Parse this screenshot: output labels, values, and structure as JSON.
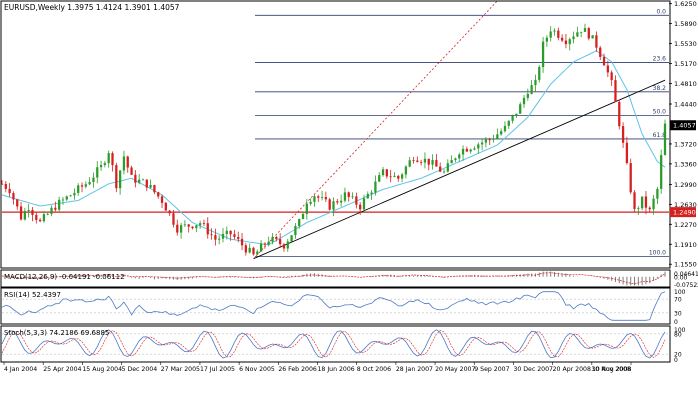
{
  "chart_data": {
    "type": "candlestick",
    "main": {
      "title": "EURUSD,Weekly  1.3975 1.4124 1.3901 1.4057",
      "y_axis_ticks": [
        "1.6250",
        "1.5890",
        "1.5530",
        "1.5170",
        "1.4810",
        "1.4440",
        "1.4057",
        "1.3720",
        "1.3360",
        "1.2990",
        "1.2630",
        "1.2490",
        "1.2270",
        "1.1910",
        "1.1550"
      ],
      "y_axis_values": [
        1.625,
        1.589,
        1.553,
        1.517,
        1.481,
        1.444,
        1.4057,
        1.372,
        1.336,
        1.299,
        1.263,
        1.249,
        1.227,
        1.191,
        1.155
      ],
      "ylim": [
        1.15,
        1.628
      ],
      "current_price": "1.4057",
      "current_value": 1.4057,
      "support_level_label": "1.2490",
      "support_value": 1.249,
      "fib_levels": [
        {
          "label": "0.0",
          "value": 1.604
        },
        {
          "label": "23.6",
          "value": 1.519
        },
        {
          "label": "38.2",
          "value": 1.466
        },
        {
          "label": "50.0",
          "value": 1.423
        },
        {
          "label": "61.8",
          "value": 1.381
        },
        {
          "label": "100.0",
          "value": 1.169
        }
      ],
      "price_path": [
        [
          0,
          1.3
        ],
        [
          2,
          1.29
        ],
        [
          5,
          1.24
        ],
        [
          7,
          1.26
        ],
        [
          10,
          1.23
        ],
        [
          14,
          1.26
        ],
        [
          18,
          1.28
        ],
        [
          22,
          1.3
        ],
        [
          26,
          1.33
        ],
        [
          28,
          1.36
        ],
        [
          30,
          1.3
        ],
        [
          32,
          1.35
        ],
        [
          34,
          1.31
        ],
        [
          38,
          1.3
        ],
        [
          42,
          1.27
        ],
        [
          46,
          1.22
        ],
        [
          52,
          1.23
        ],
        [
          56,
          1.2
        ],
        [
          60,
          1.21
        ],
        [
          66,
          1.17
        ],
        [
          70,
          1.2
        ],
        [
          74,
          1.19
        ],
        [
          78,
          1.23
        ],
        [
          80,
          1.27
        ],
        [
          82,
          1.28
        ],
        [
          86,
          1.26
        ],
        [
          90,
          1.28
        ],
        [
          94,
          1.26
        ],
        [
          98,
          1.3
        ],
        [
          100,
          1.32
        ],
        [
          104,
          1.31
        ],
        [
          108,
          1.35
        ],
        [
          112,
          1.34
        ],
        [
          116,
          1.32
        ],
        [
          120,
          1.36
        ],
        [
          124,
          1.37
        ],
        [
          128,
          1.38
        ],
        [
          132,
          1.4
        ],
        [
          136,
          1.44
        ],
        [
          138,
          1.47
        ],
        [
          140,
          1.48
        ],
        [
          142,
          1.55
        ],
        [
          144,
          1.58
        ],
        [
          146,
          1.57
        ],
        [
          148,
          1.56
        ],
        [
          152,
          1.58
        ],
        [
          154,
          1.57
        ],
        [
          156,
          1.55
        ],
        [
          158,
          1.52
        ],
        [
          160,
          1.48
        ],
        [
          162,
          1.41
        ],
        [
          164,
          1.33
        ],
        [
          166,
          1.25
        ],
        [
          168,
          1.27
        ],
        [
          170,
          1.25
        ],
        [
          172,
          1.29
        ],
        [
          174,
          1.4057
        ]
      ],
      "ma_path": [
        [
          0,
          1.28
        ],
        [
          10,
          1.26
        ],
        [
          20,
          1.27
        ],
        [
          28,
          1.3
        ],
        [
          34,
          1.31
        ],
        [
          42,
          1.28
        ],
        [
          50,
          1.23
        ],
        [
          60,
          1.2
        ],
        [
          70,
          1.19
        ],
        [
          80,
          1.23
        ],
        [
          90,
          1.26
        ],
        [
          100,
          1.29
        ],
        [
          110,
          1.31
        ],
        [
          120,
          1.34
        ],
        [
          130,
          1.37
        ],
        [
          138,
          1.42
        ],
        [
          144,
          1.48
        ],
        [
          150,
          1.52
        ],
        [
          156,
          1.54
        ],
        [
          160,
          1.52
        ],
        [
          164,
          1.47
        ],
        [
          168,
          1.39
        ],
        [
          172,
          1.34
        ],
        [
          174,
          1.33
        ]
      ],
      "x_range": [
        0,
        174
      ]
    },
    "macd": {
      "title": "MACD(12,26,9) -0.04191 -0.06112",
      "y_axis_ticks": [
        "0.04641",
        "0.00",
        "-0.07522"
      ],
      "y_axis_values": [
        0.04641,
        0.0,
        -0.07522
      ],
      "ylim": [
        -0.08,
        0.05
      ]
    },
    "rsi": {
      "title": "RSI(14) 52.4397",
      "y_axis_ticks": [
        "100",
        "70",
        "30",
        "0"
      ],
      "y_axis_values": [
        100,
        70,
        30,
        0
      ],
      "ylim": [
        0,
        100
      ]
    },
    "stoch": {
      "title": "Stoch(5,3,3) 74.2186 69.6885",
      "y_axis_ticks": [
        "100",
        "80",
        "20",
        "0"
      ],
      "y_axis_values": [
        100,
        80,
        20,
        0
      ],
      "ylim": [
        0,
        100
      ]
    },
    "x_axis_labels": [
      "4 Jan 2004",
      "25 Apr 2004",
      "15 Aug 2004",
      "5 Dec 2004",
      "27 Mar 2005",
      "17 Jul 2005",
      "6 Nov 2005",
      "26 Feb 2006",
      "18 Jun 2006",
      "8 Oct 2006",
      "28 Jan 2007",
      "20 May 2007",
      "9 Sep 2007",
      "30 Dec 2007",
      "20 Apr 2008",
      "10 Aug 2008",
      "30 Nov 2008"
    ],
    "colors": {
      "bull_candle": "#2a9c2a",
      "bear_candle": "#d61f1f",
      "moving_average": "#5ec4e8",
      "fib_line": "#2e3d6b",
      "support_line": "#d61f1f",
      "trend_line": "#000000",
      "channel_line": "#d61f1f",
      "price_tag_bg": "#000000",
      "support_tag_bg": "#d61f1f",
      "indicator_line": "#4d79c7",
      "signal_line": "#d61f1f"
    }
  }
}
